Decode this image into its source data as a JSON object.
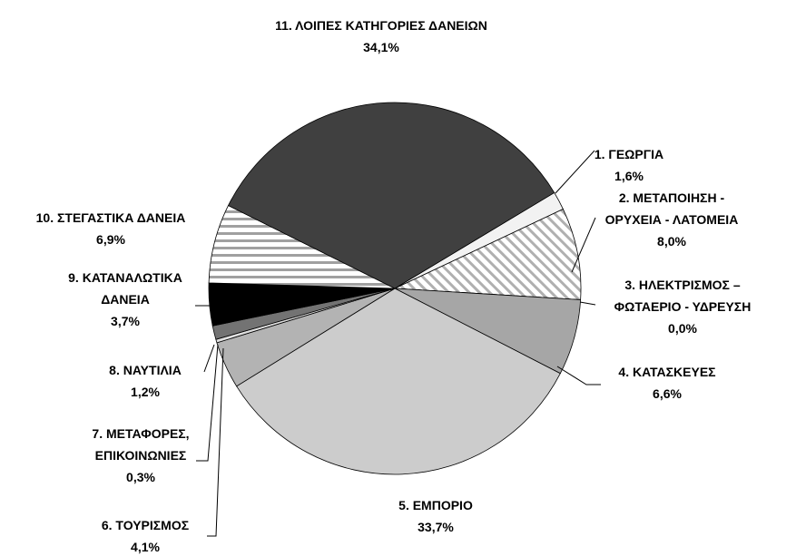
{
  "chart_data": {
    "type": "pie",
    "categories": [
      "1. ΓΕΩΡΓΙΑ",
      "2. ΜΕΤΑΠΟΙΗΣΗ - ΟΡΥΧΕΙΑ - ΛΑΤΟΜΕΙΑ",
      "3. ΗΛΕΚΤΡΙΣΜΟΣ – ΦΩΤΑΕΡΙΟ - ΥΔΡΕΥΣΗ",
      "4. ΚΑΤΑΣΚΕΥΕΣ",
      "5. ΕΜΠΟΡΙΟ",
      "6. ΤΟΥΡΙΣΜΟΣ",
      "7. ΜΕΤΑΦΟΡΕΣ, ΕΠΙΚΟΙΝΩΝΙΕΣ",
      "8. ΝΑΥΤΙΛΙΑ",
      "9. ΚΑΤΑΝΑΛΩΤΙΚΑ ΔΑΝΕΙΑ",
      "10. ΣΤΕΓΑΣΤΙΚΑ ΔΑΝΕΙΑ",
      "11. ΛΟΙΠΕΣ ΚΑΤΗΓΟΡΙΕΣ ΔΑΝΕΙΩΝ"
    ],
    "values": [
      1.6,
      8.0,
      0.0,
      6.6,
      33.7,
      4.1,
      0.3,
      1.2,
      3.7,
      6.9,
      34.1
    ],
    "value_labels": [
      "1,6%",
      "8,0%",
      "0,0%",
      "6,6%",
      "33,7%",
      "4,1%",
      "0,3%",
      "1,2%",
      "3,7%",
      "6,9%",
      "34,1%"
    ],
    "colors": [
      "#f2f2f2",
      "#ffffff",
      "#ffffff",
      "#a6a6a6",
      "#cccccc",
      "#b3b3b3",
      "#e0e0e0",
      "#737373",
      "#000000",
      "#ffffff",
      "#404040"
    ],
    "hatch": [
      null,
      "diagonal",
      null,
      null,
      null,
      null,
      null,
      null,
      null,
      "horizontal",
      null
    ]
  }
}
